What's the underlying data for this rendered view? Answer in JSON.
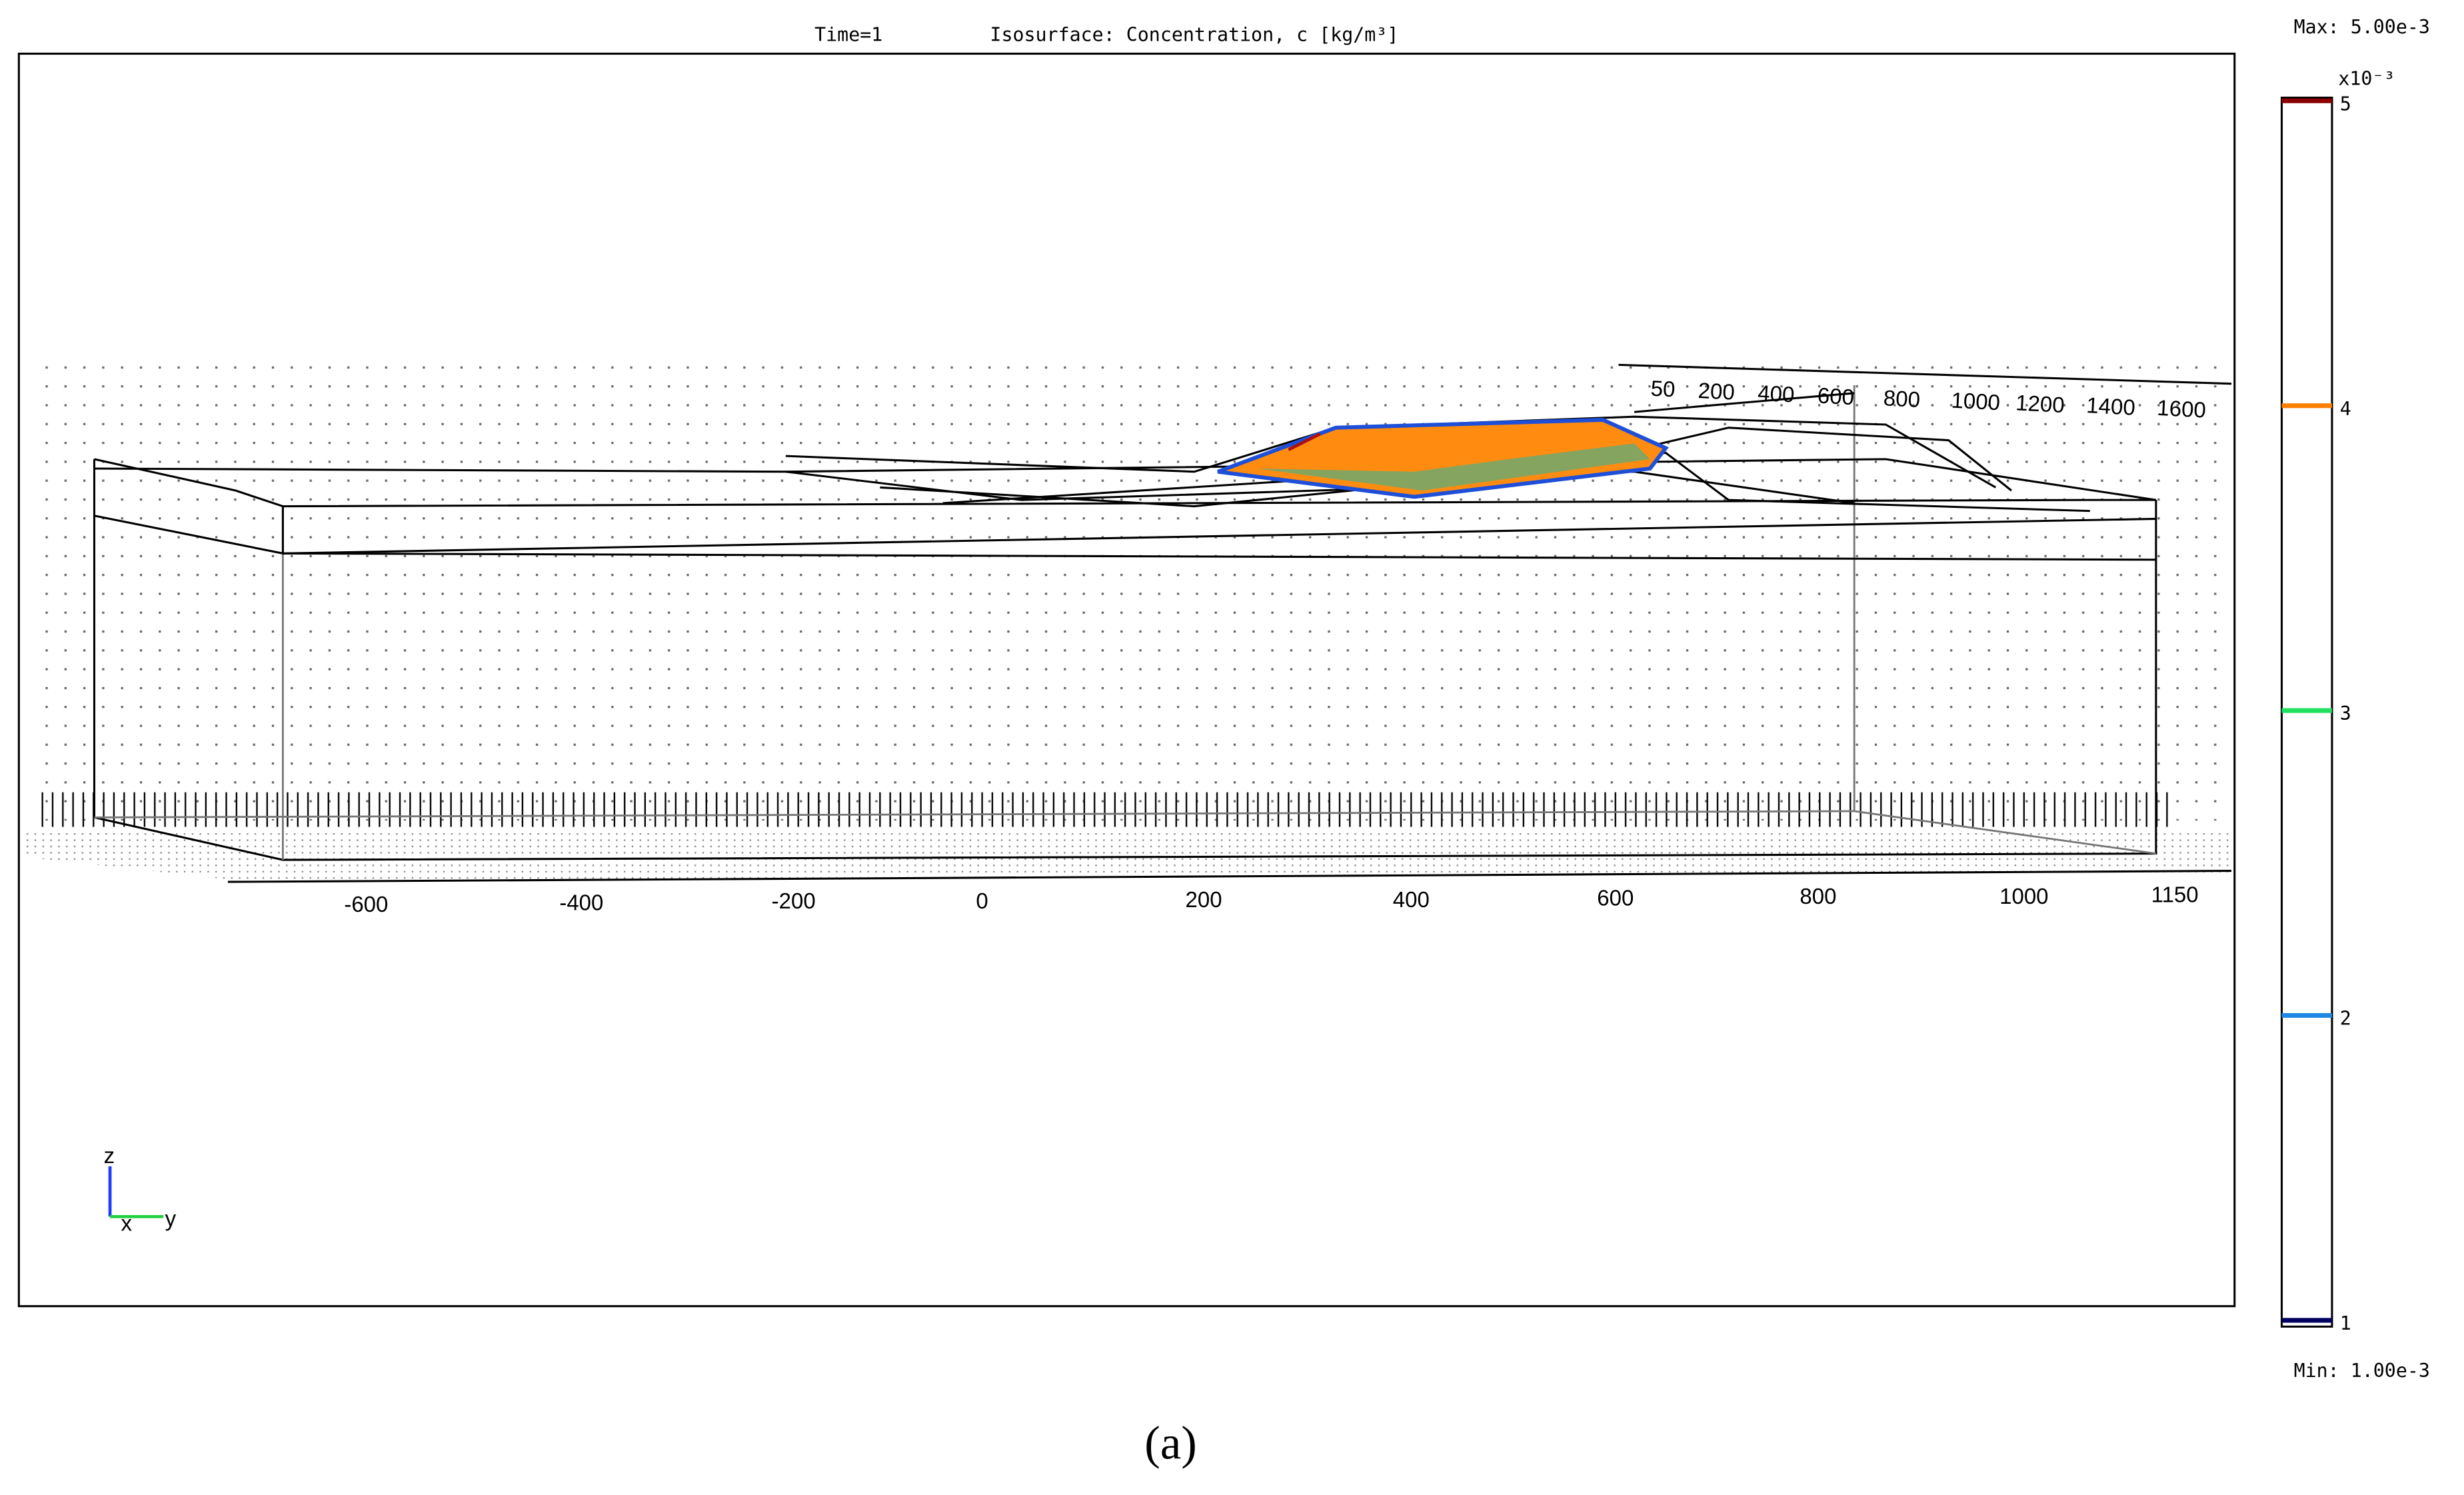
{
  "header": {
    "time": "Time=1",
    "title": "Isosurface: Concentration, c [kg/m³]"
  },
  "colorbar": {
    "max_label": "Max: 5.00e-3",
    "min_label": "Min: 1.00e-3",
    "exponent": "x10⁻³",
    "ticks": [
      {
        "label": "5",
        "color": "#8b0000"
      },
      {
        "label": "4",
        "color": "#ff8000"
      },
      {
        "label": "3",
        "color": "#20e060"
      },
      {
        "label": "2",
        "color": "#1e88e5"
      },
      {
        "label": "1",
        "color": "#000060"
      }
    ]
  },
  "x_axis": {
    "labels": [
      "-600",
      "-400",
      "-200",
      "0",
      "200",
      "400",
      "600",
      "800",
      "1000",
      "1150"
    ]
  },
  "y_axis": {
    "labels": [
      "50",
      "200",
      "400",
      "600",
      "800",
      "1000",
      "1200",
      "1400",
      "1600"
    ]
  },
  "triad": {
    "z": "z",
    "x": "x",
    "y": "y"
  },
  "caption": "(a)"
}
